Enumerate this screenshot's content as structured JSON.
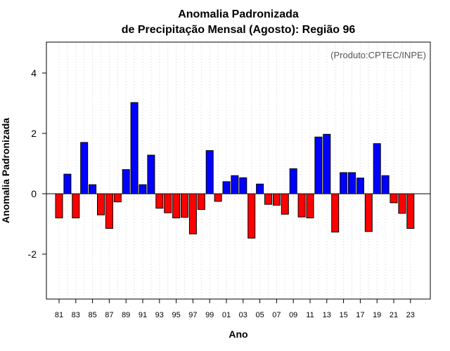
{
  "chart_data": {
    "type": "bar",
    "title_line1": "Anomalia Padronizada",
    "title_line2": "de Precipitação Mensal (Agosto): Região 96",
    "annotation": "(Produto:CPTEC/INPE)",
    "xlabel": "Ano",
    "ylabel": "Anomalia Padronizada",
    "ylim": [
      -3.5,
      5.0
    ],
    "yticks": [
      -2,
      0,
      2,
      4
    ],
    "ytick_labels": [
      "-2",
      "0",
      "2",
      "4"
    ],
    "categories": [
      "81",
      "82",
      "83",
      "84",
      "85",
      "86",
      "87",
      "88",
      "89",
      "90",
      "91",
      "92",
      "93",
      "94",
      "95",
      "96",
      "97",
      "98",
      "99",
      "00",
      "01",
      "02",
      "03",
      "04",
      "05",
      "06",
      "07",
      "08",
      "09",
      "10",
      "11",
      "12",
      "13",
      "14",
      "15",
      "16",
      "17",
      "18",
      "19",
      "20",
      "21",
      "22",
      "23"
    ],
    "xtick_labels": [
      "81",
      "83",
      "85",
      "87",
      "89",
      "91",
      "93",
      "95",
      "97",
      "99",
      "01",
      "03",
      "05",
      "07",
      "09",
      "11",
      "13",
      "15",
      "17",
      "19",
      "21",
      "23"
    ],
    "values": [
      -0.8,
      0.65,
      -0.8,
      1.7,
      0.3,
      -0.7,
      -1.15,
      -0.27,
      0.8,
      3.02,
      0.3,
      1.28,
      -0.48,
      -0.63,
      -0.8,
      -0.78,
      -1.33,
      -0.52,
      1.43,
      -0.25,
      0.4,
      0.6,
      0.53,
      -1.47,
      0.32,
      -0.35,
      -0.38,
      -0.68,
      0.83,
      -0.77,
      -0.8,
      1.88,
      1.97,
      -1.27,
      0.7,
      0.7,
      0.52,
      -1.25,
      1.66,
      0.6,
      -0.3,
      -0.65,
      -1.15
    ],
    "positive_color": "#0000ff",
    "negative_color": "#ff0000",
    "grid": true
  }
}
